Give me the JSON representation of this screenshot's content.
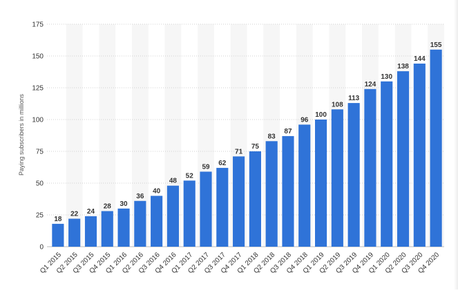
{
  "chart_data": {
    "type": "bar",
    "ylabel": "Paying subscribers in millions",
    "xlabel": "",
    "ylim": [
      0,
      175
    ],
    "yticks": [
      0,
      25,
      50,
      75,
      100,
      125,
      150,
      175
    ],
    "grid": true,
    "bar_color": "#2f73d8",
    "categories": [
      "Q1 2015",
      "Q2 2015",
      "Q3 2015",
      "Q4 2015",
      "Q1 2016",
      "Q2 2016",
      "Q3 2016",
      "Q4 2016",
      "Q1 2017",
      "Q2 2017",
      "Q3 2017",
      "Q4 2017",
      "Q1 2018",
      "Q2 2018",
      "Q3 2018",
      "Q4 2018",
      "Q1 2019",
      "Q2 2019",
      "Q3 2019",
      "Q4 2019",
      "Q1 2020",
      "Q2 2020",
      "Q3 2020",
      "Q4 2020"
    ],
    "values": [
      18,
      22,
      24,
      28,
      30,
      36,
      40,
      48,
      52,
      59,
      62,
      71,
      75,
      83,
      87,
      96,
      100,
      108,
      113,
      124,
      130,
      138,
      144,
      155
    ]
  }
}
